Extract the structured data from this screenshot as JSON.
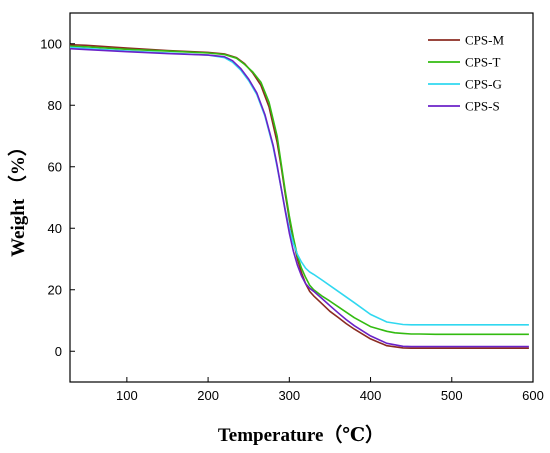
{
  "chart_data": {
    "type": "line",
    "xlabel": "Temperature（℃）",
    "ylabel": "Weight （%）",
    "xlim": [
      30,
      600
    ],
    "ylim": [
      -10,
      110
    ],
    "xticks": [
      100,
      200,
      300,
      400,
      500,
      600
    ],
    "yticks": [
      0,
      20,
      40,
      60,
      80,
      100
    ],
    "legend_position": "top-right",
    "grid": false,
    "series": [
      {
        "name": "CPS-M",
        "color": "#8b2c22",
        "x": [
          30,
          50,
          100,
          150,
          200,
          220,
          235,
          245,
          255,
          265,
          275,
          285,
          290,
          295,
          300,
          305,
          310,
          315,
          320,
          325,
          330,
          340,
          350,
          360,
          370,
          380,
          400,
          420,
          440,
          450,
          460,
          480,
          500,
          550,
          595
        ],
        "y": [
          99.7,
          99.5,
          98.6,
          97.8,
          97.2,
          96.7,
          95.5,
          93.5,
          90.5,
          86.5,
          79.5,
          68,
          60,
          51,
          43,
          36,
          30,
          25.5,
          22,
          19.5,
          18,
          15.5,
          13,
          11,
          9,
          7.2,
          4,
          1.8,
          1.1,
          1,
          1,
          1,
          1,
          1,
          1
        ]
      },
      {
        "name": "CPS-T",
        "color": "#33bb11",
        "x": [
          30,
          50,
          100,
          150,
          200,
          220,
          235,
          245,
          255,
          265,
          275,
          285,
          290,
          295,
          300,
          305,
          310,
          315,
          320,
          325,
          330,
          340,
          350,
          360,
          370,
          380,
          400,
          420,
          430,
          440,
          450,
          460,
          480,
          500,
          550,
          595
        ],
        "y": [
          99.2,
          99,
          98.2,
          97.6,
          97,
          96.5,
          95.3,
          93.3,
          90.8,
          87.5,
          81,
          70,
          61,
          52,
          44,
          37,
          31,
          27,
          24,
          21.5,
          20,
          18,
          16.3,
          14.5,
          12.7,
          10.9,
          8,
          6.5,
          6,
          5.8,
          5.6,
          5.6,
          5.5,
          5.5,
          5.5,
          5.5
        ]
      },
      {
        "name": "CPS-G",
        "color": "#30d8f0",
        "x": [
          30,
          50,
          100,
          150,
          200,
          220,
          230,
          240,
          250,
          260,
          270,
          280,
          285,
          290,
          295,
          300,
          305,
          310,
          315,
          320,
          325,
          330,
          340,
          360,
          380,
          400,
          420,
          440,
          450,
          460,
          500,
          550,
          595
        ],
        "y": [
          98.8,
          98.5,
          97.6,
          97,
          96.3,
          95.5,
          94,
          91.5,
          88,
          83.5,
          76.5,
          66.5,
          60,
          53,
          46,
          40,
          35,
          31.5,
          29,
          27,
          25.8,
          25,
          23.2,
          19.5,
          15.8,
          12,
          9.5,
          8.7,
          8.6,
          8.6,
          8.6,
          8.6,
          8.6
        ]
      },
      {
        "name": "CPS-S",
        "color": "#6b22c8",
        "x": [
          30,
          50,
          100,
          150,
          200,
          220,
          230,
          240,
          250,
          260,
          270,
          280,
          285,
          290,
          295,
          300,
          305,
          310,
          315,
          320,
          325,
          330,
          340,
          350,
          360,
          370,
          380,
          400,
          420,
          440,
          450,
          460,
          500,
          550,
          595
        ],
        "y": [
          98.4,
          98.1,
          97.4,
          96.8,
          96.3,
          95.8,
          94.5,
          92,
          88.5,
          84,
          77,
          67,
          60.5,
          53,
          45.5,
          38.5,
          32.5,
          28,
          24.5,
          22,
          20.5,
          19.5,
          17.2,
          14.8,
          12.5,
          10.3,
          8.3,
          5,
          2.6,
          1.6,
          1.5,
          1.5,
          1.5,
          1.5,
          1.5
        ]
      }
    ]
  }
}
